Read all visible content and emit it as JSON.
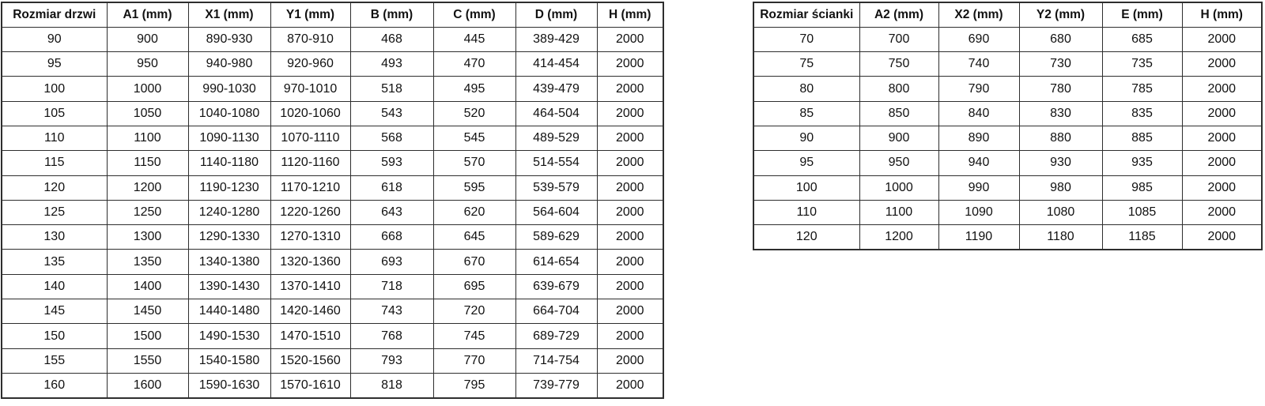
{
  "page": {
    "background_color": "#ffffff",
    "border_color": "#2e2e2e",
    "text_color": "#111111"
  },
  "door_table": {
    "headers": [
      "Rozmiar drzwi",
      "A1 (mm)",
      "X1 (mm)",
      "Y1 (mm)",
      "B (mm)",
      "C (mm)",
      "D (mm)",
      "H (mm)"
    ],
    "rows": [
      [
        "90",
        "900",
        "890-930",
        "870-910",
        "468",
        "445",
        "389-429",
        "2000"
      ],
      [
        "95",
        "950",
        "940-980",
        "920-960",
        "493",
        "470",
        "414-454",
        "2000"
      ],
      [
        "100",
        "1000",
        "990-1030",
        "970-1010",
        "518",
        "495",
        "439-479",
        "2000"
      ],
      [
        "105",
        "1050",
        "1040-1080",
        "1020-1060",
        "543",
        "520",
        "464-504",
        "2000"
      ],
      [
        "110",
        "1100",
        "1090-1130",
        "1070-1110",
        "568",
        "545",
        "489-529",
        "2000"
      ],
      [
        "115",
        "1150",
        "1140-1180",
        "1120-1160",
        "593",
        "570",
        "514-554",
        "2000"
      ],
      [
        "120",
        "1200",
        "1190-1230",
        "1170-1210",
        "618",
        "595",
        "539-579",
        "2000"
      ],
      [
        "125",
        "1250",
        "1240-1280",
        "1220-1260",
        "643",
        "620",
        "564-604",
        "2000"
      ],
      [
        "130",
        "1300",
        "1290-1330",
        "1270-1310",
        "668",
        "645",
        "589-629",
        "2000"
      ],
      [
        "135",
        "1350",
        "1340-1380",
        "1320-1360",
        "693",
        "670",
        "614-654",
        "2000"
      ],
      [
        "140",
        "1400",
        "1390-1430",
        "1370-1410",
        "718",
        "695",
        "639-679",
        "2000"
      ],
      [
        "145",
        "1450",
        "1440-1480",
        "1420-1460",
        "743",
        "720",
        "664-704",
        "2000"
      ],
      [
        "150",
        "1500",
        "1490-1530",
        "1470-1510",
        "768",
        "745",
        "689-729",
        "2000"
      ],
      [
        "155",
        "1550",
        "1540-1580",
        "1520-1560",
        "793",
        "770",
        "714-754",
        "2000"
      ],
      [
        "160",
        "1600",
        "1590-1630",
        "1570-1610",
        "818",
        "795",
        "739-779",
        "2000"
      ]
    ]
  },
  "wall_table": {
    "headers": [
      "Rozmiar ścianki",
      "A2 (mm)",
      "X2 (mm)",
      "Y2 (mm)",
      "E (mm)",
      "H (mm)"
    ],
    "rows": [
      [
        "70",
        "700",
        "690",
        "680",
        "685",
        "2000"
      ],
      [
        "75",
        "750",
        "740",
        "730",
        "735",
        "2000"
      ],
      [
        "80",
        "800",
        "790",
        "780",
        "785",
        "2000"
      ],
      [
        "85",
        "850",
        "840",
        "830",
        "835",
        "2000"
      ],
      [
        "90",
        "900",
        "890",
        "880",
        "885",
        "2000"
      ],
      [
        "95",
        "950",
        "940",
        "930",
        "935",
        "2000"
      ],
      [
        "100",
        "1000",
        "990",
        "980",
        "985",
        "2000"
      ],
      [
        "110",
        "1100",
        "1090",
        "1080",
        "1085",
        "2000"
      ],
      [
        "120",
        "1200",
        "1190",
        "1180",
        "1185",
        "2000"
      ]
    ]
  }
}
